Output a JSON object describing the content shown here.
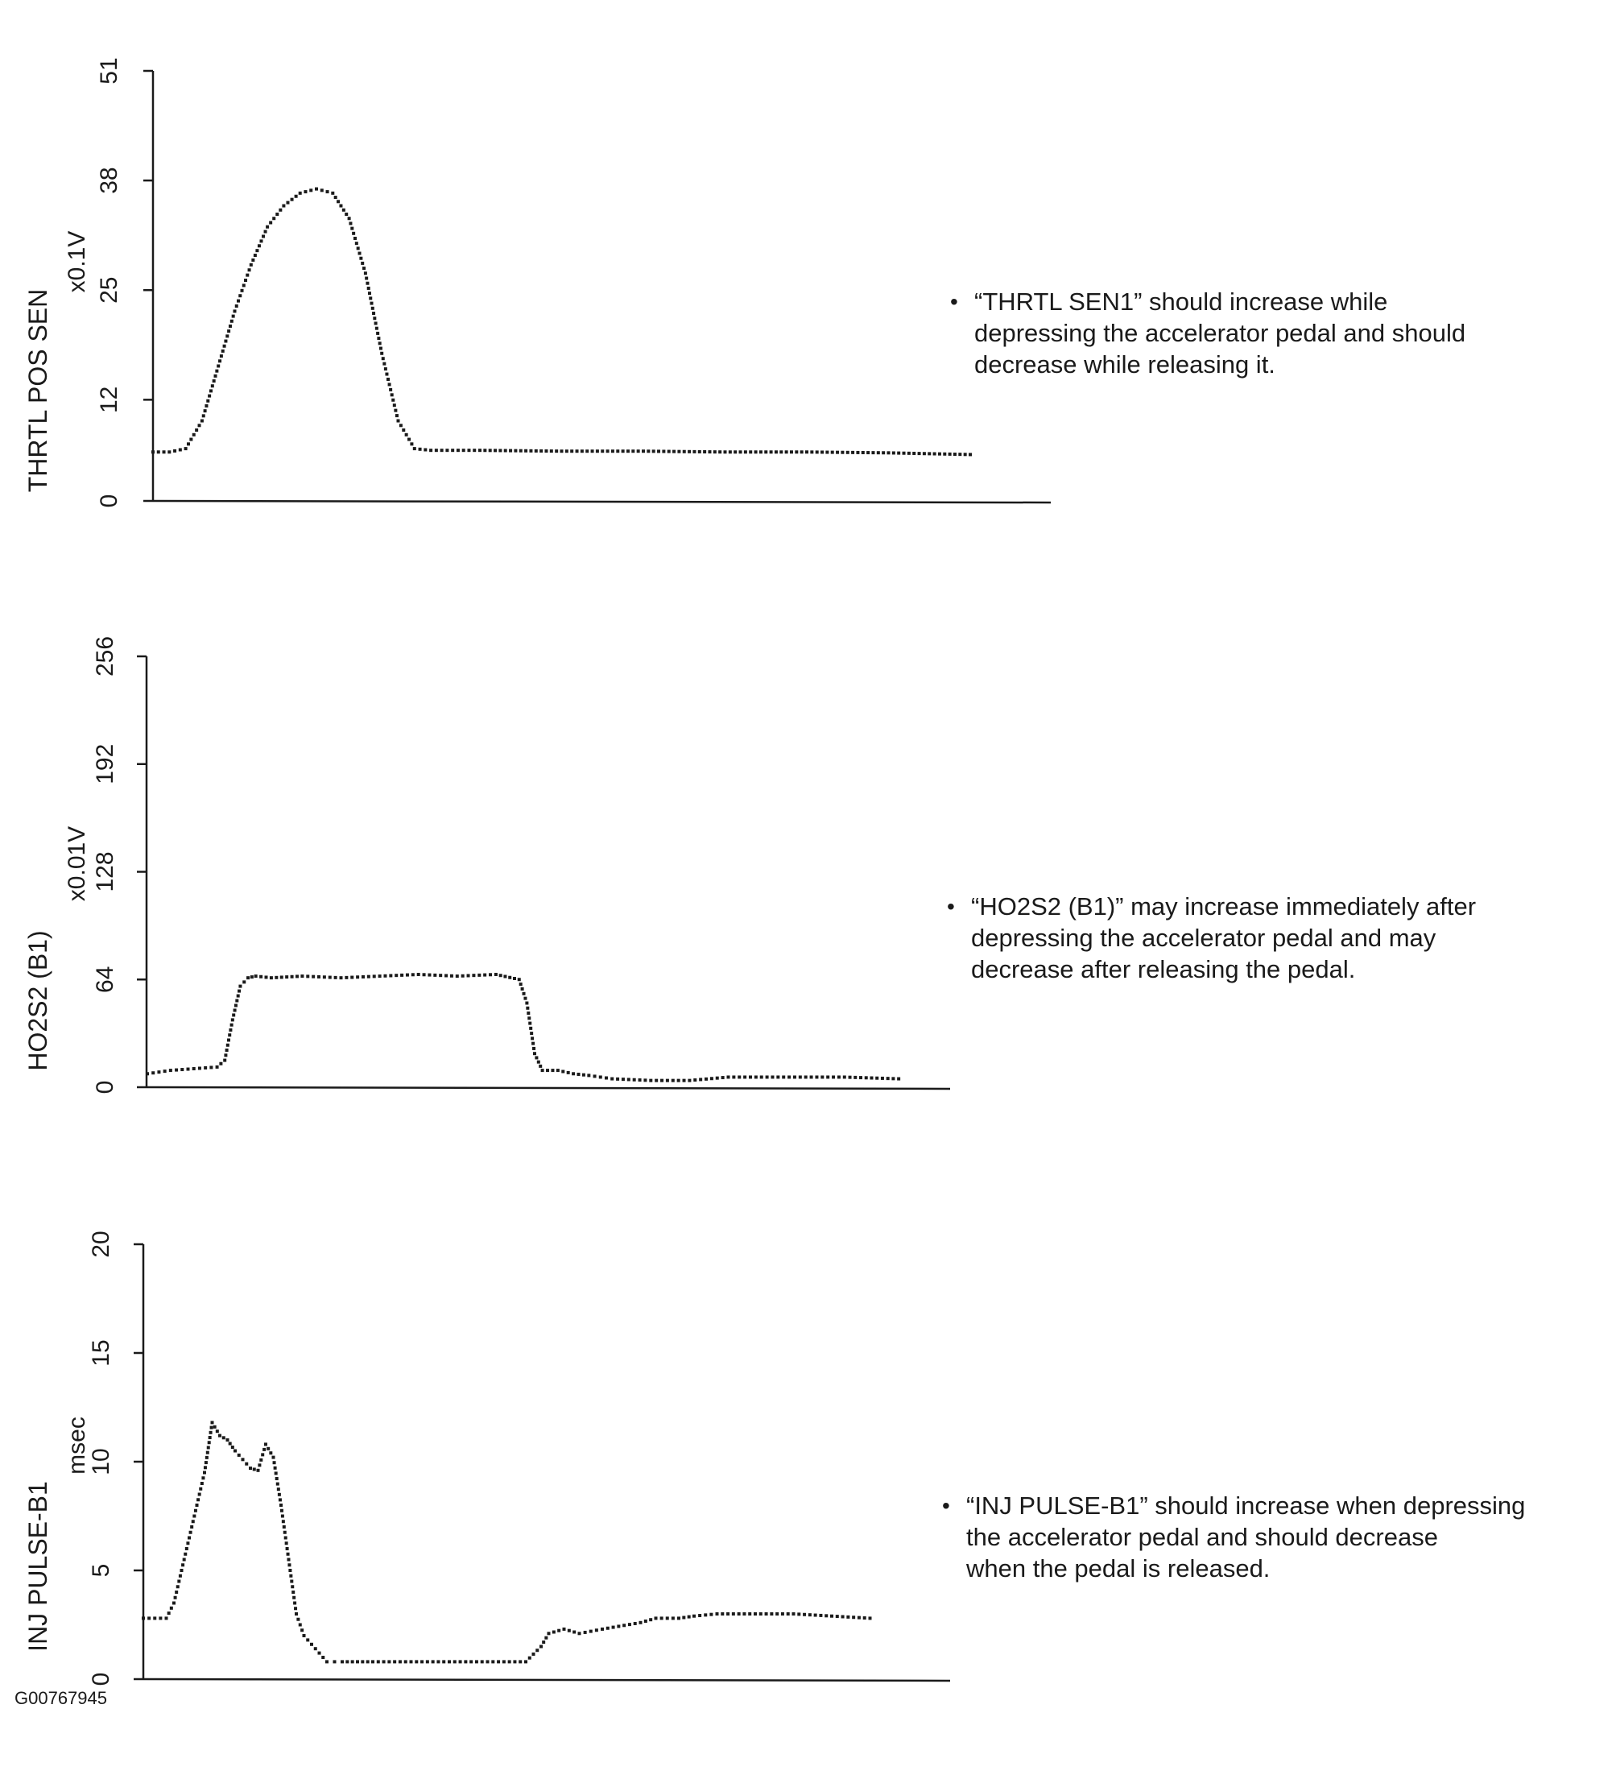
{
  "figure_code": "G00767945",
  "notes": [
    "“THRTL SEN1” should increase while\ndepressing the accelerator pedal and should\ndecrease while releasing it.",
    "“HO2S2 (B1)” may increase immediately after\ndepressing the accelerator pedal and may\ndecrease after releasing the pedal.",
    "“INJ PULSE-B1” should increase when depressing\nthe accelerator pedal and should decrease\nwhen the pedal is released."
  ],
  "colors": {
    "ink": "#1a1a1a",
    "background": "#ffffff"
  },
  "chart_data": [
    {
      "type": "scatter",
      "ylabel": "THRTL POS SEN",
      "yunit": "x0.1V",
      "yticks": [
        0,
        12,
        25,
        38,
        51
      ],
      "ylim": [
        0,
        51
      ],
      "xlim": [
        0,
        100
      ],
      "grid": false,
      "x": [
        0,
        2,
        4,
        6,
        8,
        10,
        12,
        14,
        16,
        18,
        20,
        22,
        24,
        26,
        28,
        30,
        32,
        34,
        36,
        40,
        50,
        60,
        70,
        80,
        90,
        100
      ],
      "y": [
        5.8,
        5.8,
        6.2,
        9.5,
        16,
        22.5,
        28,
        32.5,
        35,
        36.5,
        37,
        36.5,
        33.5,
        27,
        17.5,
        9.5,
        6.2,
        6.0,
        6.0,
        6.0,
        5.9,
        5.9,
        5.8,
        5.8,
        5.7,
        5.5
      ]
    },
    {
      "type": "scatter",
      "ylabel": "HO2S2 (B1)",
      "yunit": "x0.01V",
      "yticks": [
        0,
        64,
        128,
        192,
        256
      ],
      "ylim": [
        0,
        256
      ],
      "xlim": [
        0,
        100
      ],
      "grid": false,
      "x": [
        0,
        3,
        6,
        9,
        10,
        11,
        12,
        13,
        14,
        16,
        20,
        25,
        30,
        35,
        40,
        45,
        48,
        49,
        50,
        51,
        53,
        55,
        57,
        60,
        65,
        70,
        75,
        80,
        85,
        90,
        97
      ],
      "y": [
        8,
        10,
        11,
        12,
        16,
        40,
        60,
        65,
        66,
        65,
        66,
        65,
        66,
        67,
        66,
        67,
        64,
        50,
        20,
        10,
        10,
        8,
        7,
        5,
        4,
        4,
        6,
        6,
        6,
        6,
        5
      ]
    },
    {
      "type": "scatter",
      "ylabel": "INJ PULSE-B1",
      "yunit": "msec",
      "yticks": [
        0,
        5,
        10,
        15,
        20
      ],
      "ylim": [
        0,
        20
      ],
      "xlim": [
        0,
        100
      ],
      "grid": false,
      "x": [
        0,
        3,
        4,
        5,
        6,
        7,
        8,
        9,
        10,
        11,
        12,
        14,
        15,
        16,
        17,
        18,
        19,
        20,
        21,
        22,
        23,
        24,
        25,
        26,
        28,
        30,
        35,
        40,
        45,
        50,
        52,
        53,
        55,
        57,
        60,
        65,
        67,
        70,
        72,
        75,
        80,
        85,
        90,
        95
      ],
      "y": [
        2.8,
        2.8,
        3.5,
        5,
        6.5,
        8,
        9.5,
        11.8,
        11.2,
        11,
        10.5,
        9.7,
        9.6,
        10.8,
        10.2,
        8,
        5.5,
        3,
        2,
        1.6,
        1.2,
        0.8,
        0.8,
        0.8,
        0.8,
        0.8,
        0.8,
        0.8,
        0.8,
        0.8,
        1.5,
        2.1,
        2.3,
        2.1,
        2.3,
        2.6,
        2.8,
        2.8,
        2.9,
        3.0,
        3.0,
        3.0,
        2.9,
        2.8
      ]
    }
  ]
}
